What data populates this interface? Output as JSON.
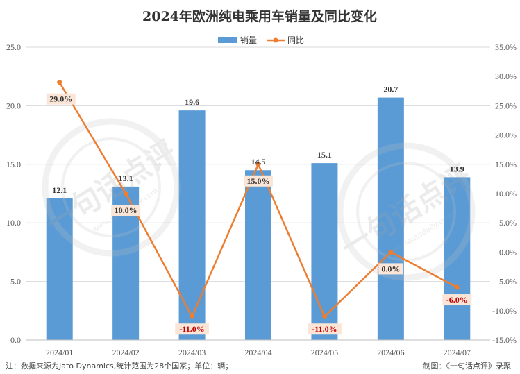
{
  "title": "2024年欧洲纯电乘用车销量及同比变化",
  "footer": {
    "note": "注：数据来源为Jato Dynamics,统计范围为28个国家；单位：辆；",
    "credit": "制图：《一句话点评》录聚"
  },
  "watermark": {
    "text": "一句话点评",
    "url": "www.iautodaily.com"
  },
  "colors": {
    "bar": "#5b9bd5",
    "line": "#ed7d31",
    "yoy_positive": "#333333",
    "yoy_negative": "#c00000",
    "label_bg": "#fbe5d6"
  },
  "chart_data": {
    "type": "bar",
    "categories": [
      "2024/01",
      "2024/02",
      "2024/03",
      "2024/04",
      "2024/05",
      "2024/06",
      "2024/07"
    ],
    "series": [
      {
        "name": "销量",
        "type": "bar",
        "axis": "left",
        "values": [
          12.1,
          13.1,
          19.6,
          14.5,
          15.1,
          20.7,
          13.9
        ],
        "labels": [
          "12.1",
          "13.1",
          "19.6",
          "14.5",
          "15.1",
          "20.7",
          "13.9"
        ]
      },
      {
        "name": "同比",
        "type": "line",
        "axis": "right",
        "values": [
          29.0,
          10.0,
          -11.0,
          15.0,
          -11.0,
          0.0,
          -6.0
        ],
        "labels": [
          "29.0%",
          "10.0%",
          "-11.0%",
          "15.0%",
          "-11.0%",
          "0.0%",
          "-6.0%"
        ]
      }
    ],
    "ylim_left": [
      0,
      25
    ],
    "yticks_left": [
      "0.0",
      "5.0",
      "10.0",
      "15.0",
      "20.0",
      "25.0"
    ],
    "ylim_right": [
      -15,
      35
    ],
    "yticks_right": [
      "-15.0%",
      "-10.0%",
      "-5.0%",
      "0.0%",
      "5.0%",
      "10.0%",
      "15.0%",
      "20.0%",
      "25.0%",
      "30.0%",
      "35.0%"
    ],
    "legend": "top-center",
    "grid": true
  }
}
